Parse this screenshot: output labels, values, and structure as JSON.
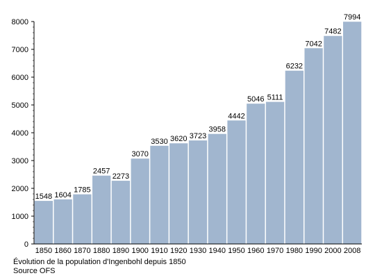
{
  "caption_line1": "Évolution de la population d'Ingenbohl depuis 1850",
  "caption_line2": "Source OFS",
  "chart_data": {
    "type": "bar",
    "categories": [
      "1850",
      "1860",
      "1870",
      "1880",
      "1890",
      "1900",
      "1910",
      "1920",
      "1930",
      "1940",
      "1950",
      "1960",
      "1970",
      "1980",
      "1990",
      "2000",
      "2008"
    ],
    "values": [
      1548,
      1604,
      1785,
      2457,
      2273,
      3070,
      3530,
      3620,
      3723,
      3958,
      4442,
      5046,
      5111,
      6232,
      7042,
      7482,
      7994
    ],
    "title": "",
    "xlabel": "",
    "ylabel": "",
    "ylim": [
      0,
      8000
    ],
    "y_ticks": [
      0,
      1000,
      2000,
      3000,
      4000,
      5000,
      6000,
      7000,
      8000
    ],
    "grid": false,
    "legend": "none",
    "bar_color": "#a1b6cf",
    "data_labels": true
  }
}
